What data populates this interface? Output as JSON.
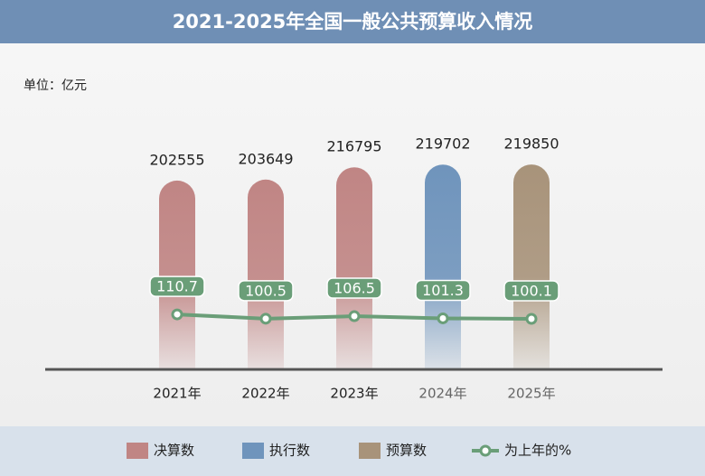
{
  "chart_data": {
    "type": "bar",
    "title": "2021-2025年全国一般公共预算收入情况",
    "unit_label": "单位：亿元",
    "categories": [
      "2021年",
      "2022年",
      "2023年",
      "2024年",
      "2025年"
    ],
    "series": [
      {
        "name": "决算数",
        "color": "#c08584",
        "values": [
          202555,
          203649,
          216795,
          null,
          null
        ]
      },
      {
        "name": "执行数",
        "color": "#6f94bc",
        "values": [
          null,
          null,
          null,
          219702,
          null
        ]
      },
      {
        "name": "预算数",
        "color": "#a8937a",
        "values": [
          null,
          null,
          null,
          null,
          219850
        ]
      },
      {
        "name": "为上年的%",
        "color": "#6a9e78",
        "type": "line",
        "axis": "y2",
        "values": [
          110.7,
          100.5,
          106.5,
          101.3,
          100.1
        ]
      }
    ],
    "ylim": [
      0,
      280000
    ],
    "y2lim": [
      -20,
      600
    ]
  }
}
